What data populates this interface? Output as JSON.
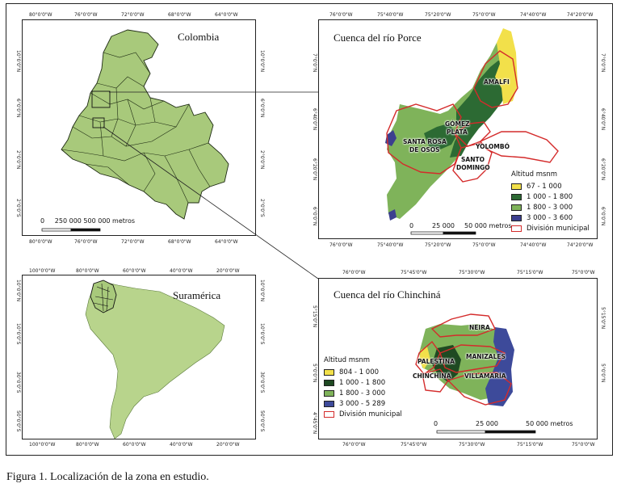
{
  "colors": {
    "colombia_fill": "#a8c97b",
    "southamerica_fill": "#b8d48c",
    "elev_1": "#f2e04a",
    "elev_2": "#2c6a33",
    "elev_3": "#7fb35a",
    "elev_4": "#3c3f8f",
    "chinchina_1": "#f2e04a",
    "chinchina_2": "#1f4a22",
    "chinchina_3": "#7fb35a",
    "chinchina_4": "#3d4a9a",
    "boundary": "#d42b2b"
  },
  "colombia": {
    "title": "Colombia",
    "top_ticks": [
      "80°0'0\"W",
      "76°0'0\"W",
      "72°0'0\"W",
      "68°0'0\"W",
      "64°0'0\"W"
    ],
    "bottom_ticks": [
      "80°0'0\"W",
      "76°0'0\"W",
      "72°0'0\"W",
      "68°0'0\"W",
      "64°0'0\"W"
    ],
    "left_ticks": [
      "10°0'0\"N",
      "6°0'0\"N",
      "2°0'0\"N",
      "2°0'0\"S"
    ],
    "right_ticks": [
      "10°0'0\"N",
      "6°0'0\"N",
      "2°0'0\"N",
      "2°0'0\"S"
    ],
    "scale_label": "0     250 000 500 000 metros"
  },
  "porce": {
    "title": "Cuenca del río Porce",
    "top_ticks": [
      "76°0'0\"W",
      "75°40'0\"W",
      "75°20'0\"W",
      "75°0'0\"W",
      "74°40'0\"W",
      "74°20'0\"W"
    ],
    "bottom_ticks": [
      "76°0'0\"W",
      "75°40'0\"W",
      "75°20'0\"W",
      "75°0'0\"W",
      "74°40'0\"W",
      "74°20'0\"W"
    ],
    "left_ticks": [
      "7°0'0\"N",
      "6°40'0\"N",
      "6°20'0\"N",
      "6°0'0\"N"
    ],
    "right_ticks": [
      "7°0'0\"N",
      "6°40'0\"N",
      "6°20'0\"N",
      "6°0'0\"N"
    ],
    "places": [
      "AMALFI",
      "GÓMEZ",
      "PLATA",
      "SANTA ROSA",
      "DE OSOS",
      "YOLOMBÓ",
      "SANTO",
      "DOMINGO"
    ],
    "legend_title": "Altitud msnm",
    "legend": [
      "67 - 1 000",
      "1 000 - 1 800",
      "1 800 - 3 000",
      "3 000 - 3 600"
    ],
    "boundary_label": "División municipal",
    "scale": [
      "0",
      "25 000",
      "50 000 metros"
    ]
  },
  "southamerica": {
    "title": "Suramérica",
    "top_ticks": [
      "100°0'0\"W",
      "80°0'0\"W",
      "60°0'0\"W",
      "40°0'0\"W",
      "20°0'0\"W"
    ],
    "bottom_ticks": [
      "100°0'0\"W",
      "80°0'0\"W",
      "60°0'0\"W",
      "40°0'0\"W",
      "20°0'0\"W"
    ],
    "left_ticks": [
      "10°0'0\"N",
      "10°0'0\"S",
      "30°0'0\"S",
      "50°0'0\"S"
    ],
    "right_ticks": [
      "10°0'0\"N",
      "10°0'0\"S",
      "30°0'0\"S",
      "50°0'0\"S"
    ]
  },
  "chinchina": {
    "title": "Cuenca del río Chinchiná",
    "top_ticks": [
      "76°0'0\"W",
      "75°45'0\"W",
      "75°30'0\"W",
      "75°15'0\"W",
      "75°0'0\"W"
    ],
    "bottom_ticks": [
      "76°0'0\"W",
      "75°45'0\"W",
      "75°30'0\"W",
      "75°15'0\"W",
      "75°0'0\"W"
    ],
    "left_ticks": [
      "5°15'0\"N",
      "5°0'0\"N",
      "4°45'0\"N"
    ],
    "right_ticks": [
      "5°15'0\"N",
      "5°0'0\"N"
    ],
    "places": [
      "NEIRA",
      "PALESTINA",
      "MANIZALES",
      "CHINCHINÁ",
      "VILLAMARÍA"
    ],
    "legend_title": "Altitud msnm",
    "legend": [
      "804 - 1 000",
      "1 000 - 1 800",
      "1 800 - 3 000",
      "3 000 - 5 289"
    ],
    "boundary_label": "División municipal",
    "scale": [
      "0",
      "25 000",
      "50 000 metros"
    ]
  },
  "caption": "Figura 1. Localización de la zona en estudio."
}
